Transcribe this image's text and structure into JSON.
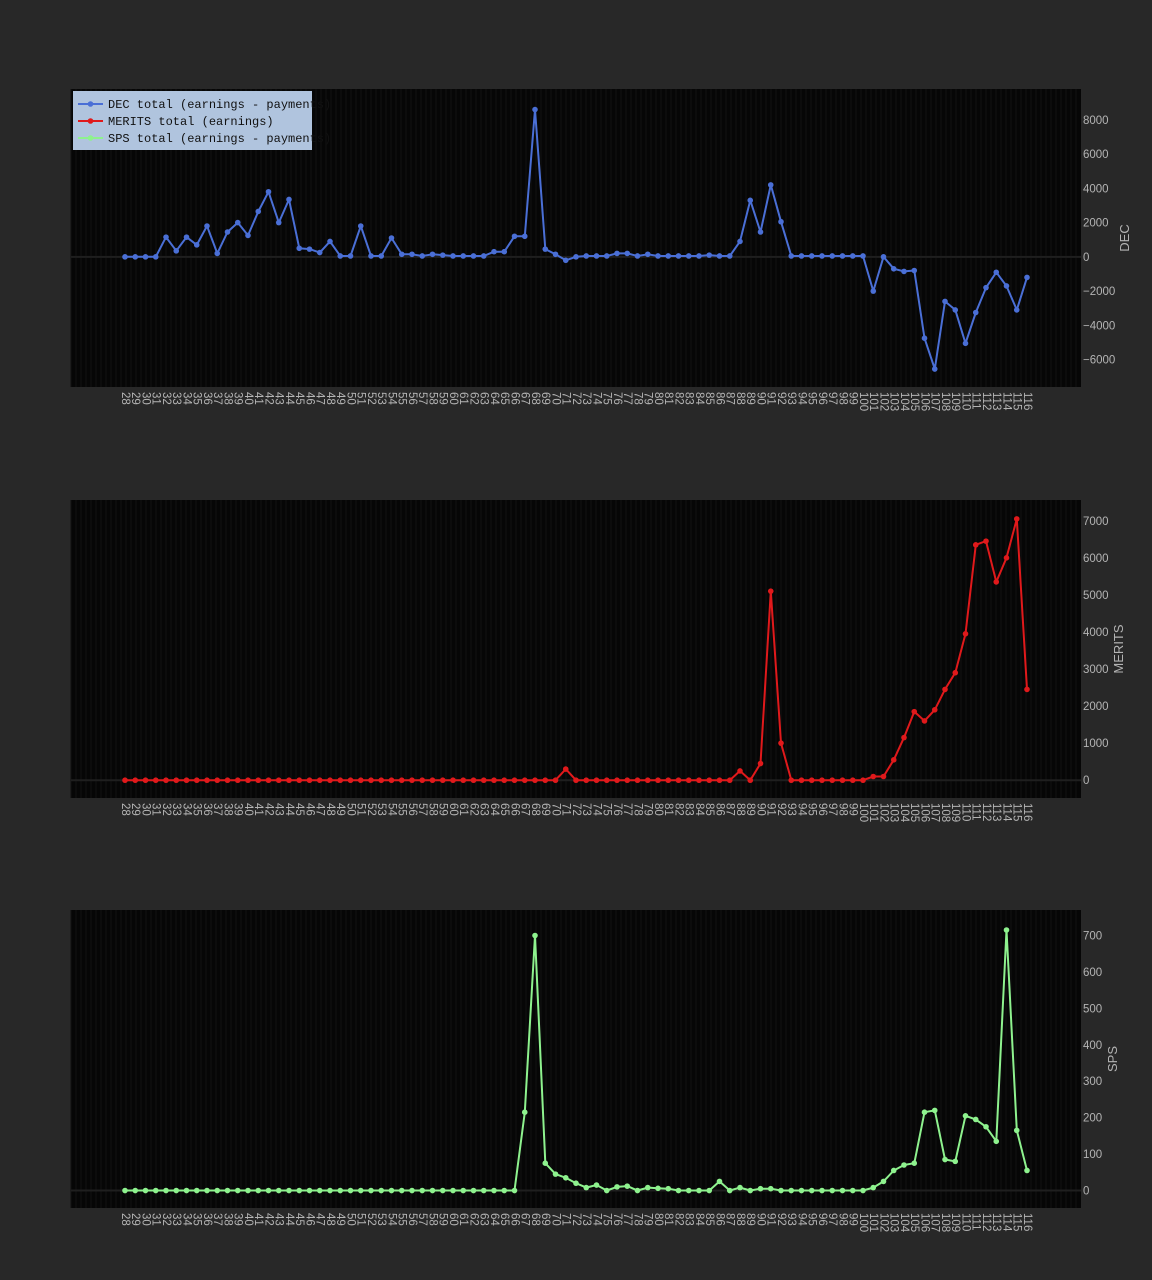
{
  "chart_data": [
    {
      "type": "line",
      "ylabel": "DEC",
      "yticks": [
        -6000,
        -4000,
        -2000,
        0,
        2000,
        4000,
        6000,
        8000
      ],
      "ylim": [
        -7600,
        9800
      ],
      "x": [
        28,
        29,
        30,
        31,
        32,
        33,
        34,
        35,
        36,
        37,
        38,
        39,
        40,
        41,
        42,
        43,
        44,
        45,
        46,
        47,
        48,
        49,
        50,
        51,
        52,
        53,
        54,
        55,
        56,
        57,
        58,
        59,
        60,
        61,
        62,
        63,
        64,
        65,
        66,
        67,
        68,
        69,
        70,
        71,
        72,
        73,
        74,
        75,
        76,
        77,
        78,
        79,
        80,
        81,
        82,
        83,
        84,
        85,
        86,
        87,
        88,
        89,
        90,
        91,
        92,
        93,
        94,
        95,
        96,
        97,
        98,
        99,
        100,
        101,
        102,
        103,
        104,
        105,
        106,
        107,
        108,
        109,
        110,
        111,
        112,
        113,
        114,
        115,
        116
      ],
      "legend": [
        "DEC total (earnings - payments)",
        "MERITS  total (earnings)",
        "SPS total (earnings - payments)"
      ],
      "legend_colors": [
        "#4a6fd6",
        "#e0191b",
        "#8ef28e"
      ],
      "series": [
        {
          "name": "DEC total (earnings - payments)",
          "color": "#4a6fd6",
          "values": [
            0,
            0,
            0,
            0,
            1150,
            350,
            1150,
            700,
            1800,
            200,
            1450,
            2000,
            1250,
            2650,
            3800,
            2000,
            3350,
            500,
            450,
            250,
            900,
            50,
            50,
            1800,
            50,
            50,
            1100,
            150,
            150,
            50,
            150,
            100,
            50,
            50,
            50,
            50,
            300,
            300,
            1200,
            1200,
            8600,
            450,
            150,
            -200,
            0,
            50,
            50,
            50,
            200,
            200,
            50,
            150,
            50,
            50,
            50,
            50,
            50,
            100,
            50,
            50,
            900,
            3300,
            1450,
            4200,
            2050,
            50,
            50,
            50,
            50,
            50,
            50,
            50,
            50,
            -2000,
            0,
            -700,
            -850,
            -800,
            -4750,
            -6550,
            -2600,
            -3100,
            -5050,
            -3250,
            -1800,
            -900,
            -1700,
            -3100,
            -1200
          ]
        }
      ]
    },
    {
      "type": "line",
      "ylabel": "MERITS",
      "yticks": [
        0,
        1000,
        2000,
        3000,
        4000,
        5000,
        6000,
        7000
      ],
      "ylim": [
        -480,
        7560
      ],
      "x": [
        28,
        29,
        30,
        31,
        32,
        33,
        34,
        35,
        36,
        37,
        38,
        39,
        40,
        41,
        42,
        43,
        44,
        45,
        46,
        47,
        48,
        49,
        50,
        51,
        52,
        53,
        54,
        55,
        56,
        57,
        58,
        59,
        60,
        61,
        62,
        63,
        64,
        65,
        66,
        67,
        68,
        69,
        70,
        71,
        72,
        73,
        74,
        75,
        76,
        77,
        78,
        79,
        80,
        81,
        82,
        83,
        84,
        85,
        86,
        87,
        88,
        89,
        90,
        91,
        92,
        93,
        94,
        95,
        96,
        97,
        98,
        99,
        100,
        101,
        102,
        103,
        104,
        105,
        106,
        107,
        108,
        109,
        110,
        111,
        112,
        113,
        114,
        115,
        116
      ],
      "series": [
        {
          "name": "MERITS  total (earnings)",
          "color": "#e0191b",
          "values": [
            0,
            0,
            0,
            0,
            0,
            0,
            0,
            0,
            0,
            0,
            0,
            0,
            0,
            0,
            0,
            0,
            0,
            0,
            0,
            0,
            0,
            0,
            0,
            0,
            0,
            0,
            0,
            0,
            0,
            0,
            0,
            0,
            0,
            0,
            0,
            0,
            0,
            0,
            0,
            0,
            0,
            0,
            0,
            300,
            0,
            0,
            0,
            0,
            0,
            0,
            0,
            0,
            0,
            0,
            0,
            0,
            0,
            0,
            0,
            0,
            250,
            0,
            450,
            5100,
            1000,
            0,
            0,
            0,
            0,
            0,
            0,
            0,
            0,
            100,
            100,
            550,
            1150,
            1850,
            1600,
            1900,
            2450,
            2900,
            3950,
            6350,
            6450,
            5350,
            6000,
            7050,
            2450
          ]
        }
      ]
    },
    {
      "type": "line",
      "ylabel": "SPS",
      "yticks": [
        0,
        100,
        200,
        300,
        400,
        500,
        600,
        700
      ],
      "ylim": [
        -48,
        770
      ],
      "x": [
        28,
        29,
        30,
        31,
        32,
        33,
        34,
        35,
        36,
        37,
        38,
        39,
        40,
        41,
        42,
        43,
        44,
        45,
        46,
        47,
        48,
        49,
        50,
        51,
        52,
        53,
        54,
        55,
        56,
        57,
        58,
        59,
        60,
        61,
        62,
        63,
        64,
        65,
        66,
        67,
        68,
        69,
        70,
        71,
        72,
        73,
        74,
        75,
        76,
        77,
        78,
        79,
        80,
        81,
        82,
        83,
        84,
        85,
        86,
        87,
        88,
        89,
        90,
        91,
        92,
        93,
        94,
        95,
        96,
        97,
        98,
        99,
        100,
        101,
        102,
        103,
        104,
        105,
        106,
        107,
        108,
        109,
        110,
        111,
        112,
        113,
        114,
        115,
        116
      ],
      "series": [
        {
          "name": "SPS total (earnings - payments)",
          "color": "#8ef28e",
          "values": [
            0,
            0,
            0,
            0,
            0,
            0,
            0,
            0,
            0,
            0,
            0,
            0,
            0,
            0,
            0,
            0,
            0,
            0,
            0,
            0,
            0,
            0,
            0,
            0,
            0,
            0,
            0,
            0,
            0,
            0,
            0,
            0,
            0,
            0,
            0,
            0,
            0,
            0,
            0,
            215,
            700,
            75,
            45,
            35,
            20,
            8,
            15,
            0,
            10,
            12,
            0,
            8,
            6,
            5,
            0,
            0,
            0,
            0,
            25,
            0,
            8,
            0,
            5,
            5,
            0,
            0,
            0,
            0,
            0,
            0,
            0,
            0,
            0,
            8,
            25,
            55,
            70,
            75,
            215,
            220,
            85,
            80,
            205,
            195,
            175,
            135,
            715,
            165,
            55
          ]
        }
      ]
    }
  ]
}
